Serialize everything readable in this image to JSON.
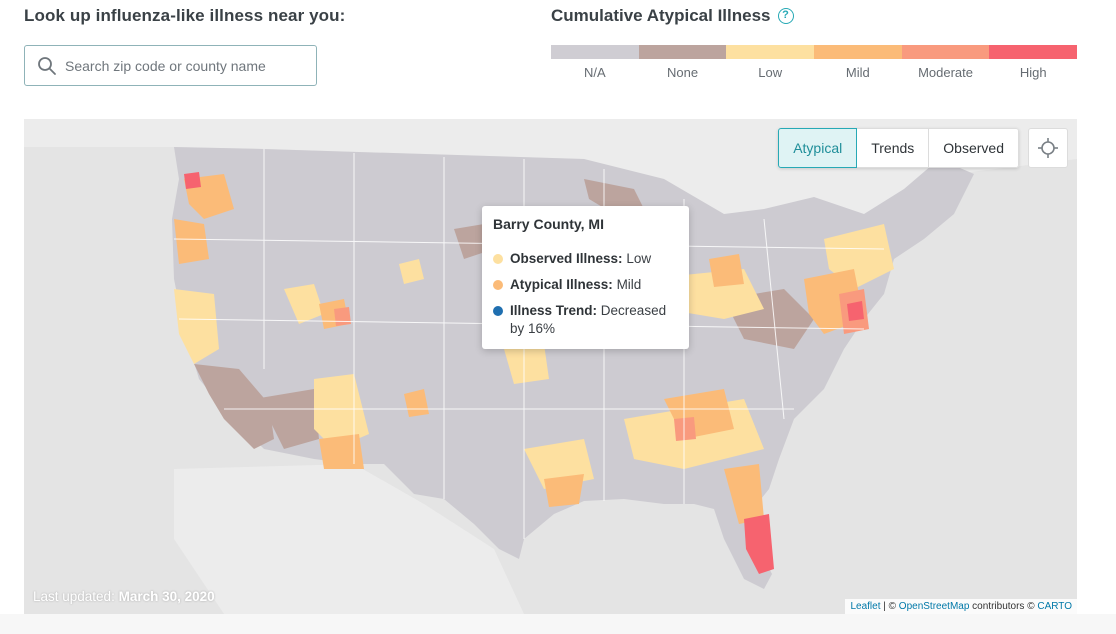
{
  "lookup": {
    "title": "Look up influenza-like illness near you:",
    "search_placeholder": "Search zip code or county name",
    "search_icon": "search-icon"
  },
  "legend": {
    "title": "Cumulative Atypical Illness",
    "help_icon": "question-circle-icon",
    "items": [
      {
        "label": "N/A",
        "color": "#cfcdd3"
      },
      {
        "label": "None",
        "color": "#bca49e"
      },
      {
        "label": "Low",
        "color": "#fde0a0"
      },
      {
        "label": "Mild",
        "color": "#fbbb78"
      },
      {
        "label": "Moderate",
        "color": "#f99a7e"
      },
      {
        "label": "High",
        "color": "#f6636f"
      }
    ]
  },
  "map": {
    "modes": [
      {
        "label": "Atypical",
        "active": true
      },
      {
        "label": "Trends",
        "active": false
      },
      {
        "label": "Observed",
        "active": false
      }
    ],
    "locate_icon": "crosshair-icon",
    "tooltip": {
      "title": "Barry County, MI",
      "rows": [
        {
          "key": "Observed Illness:",
          "value": "Low",
          "color": "#fde0a0"
        },
        {
          "key": "Atypical Illness:",
          "value": "Mild",
          "color": "#fbbb78"
        },
        {
          "key": "Illness Trend:",
          "value": "Decreased by 16%",
          "color": "#1f6fb0"
        }
      ]
    },
    "last_updated_label": "Last updated:",
    "last_updated_date": "March 30, 2020",
    "attribution": {
      "leaflet": "Leaflet",
      "sep": " | © ",
      "osm": "OpenStreetMap",
      "contrib": " contributors © ",
      "carto": "CARTO"
    }
  }
}
